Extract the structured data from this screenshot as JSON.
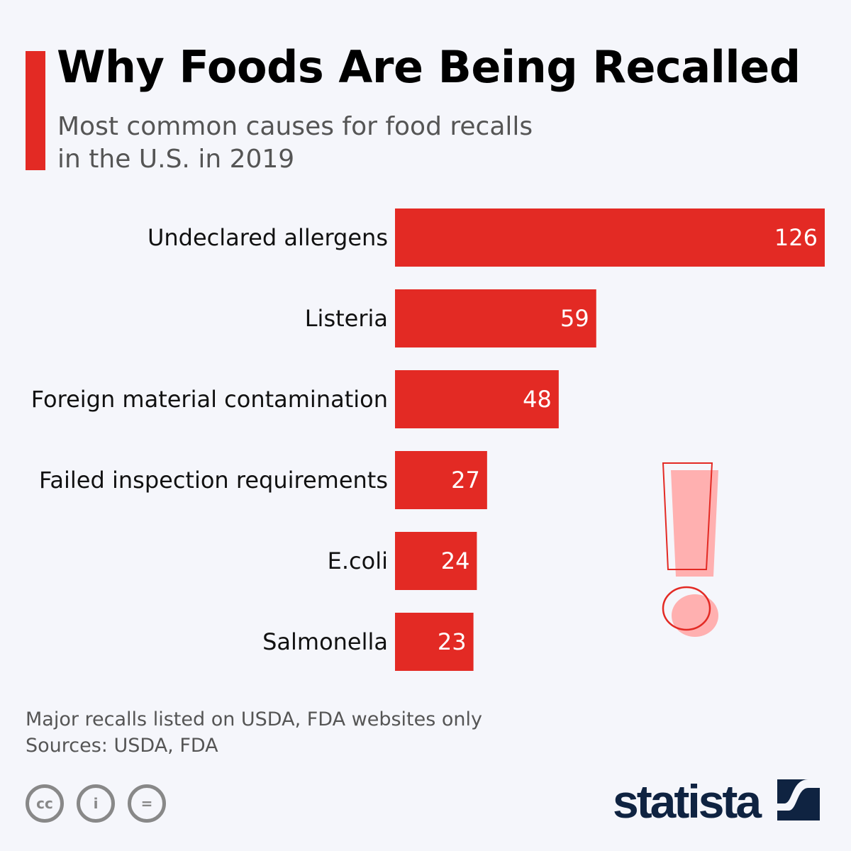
{
  "header": {
    "title": "Why Foods Are Being Recalled",
    "subtitle_line1": "Most common causes for food recalls",
    "subtitle_line2": "in the U.S. in 2019"
  },
  "chart_data": {
    "type": "bar",
    "orientation": "horizontal",
    "categories": [
      "Undeclared allergens",
      "Listeria",
      "Foreign material contamination",
      "Failed inspection requirements",
      "E.coli",
      "Salmonella"
    ],
    "values": [
      126,
      59,
      48,
      27,
      24,
      23
    ],
    "xlim": [
      0,
      126
    ],
    "grid": false,
    "bar_color": "#e32a24",
    "data_labels": true
  },
  "footer": {
    "note": "Major recalls listed on USDA, FDA websites only",
    "sources": "Sources: USDA, FDA",
    "license_icons": [
      "cc-icon",
      "attribution-icon",
      "no-derivatives-icon"
    ],
    "brand": "statista"
  },
  "colors": {
    "accent": "#e32a24",
    "background": "#f5f6fb",
    "brand": "#0f2341"
  }
}
